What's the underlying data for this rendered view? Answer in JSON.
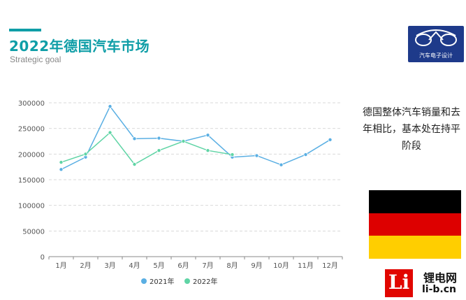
{
  "header": {
    "title": "2022年德国汽车市场",
    "subtitle": "Strategic goal",
    "accent_color": "#0f9ea7"
  },
  "logo": {
    "text": "汽车电子设计"
  },
  "note": {
    "text": "德国整体汽车销量和去年相比，基本处在持平阶段"
  },
  "flag": {
    "colors": [
      "#000000",
      "#dd0000",
      "#ffce00"
    ]
  },
  "brand": {
    "glyph": "Li",
    "name": "锂电网",
    "url": "li-b.cn"
  },
  "chart_data": {
    "type": "line",
    "title": "",
    "xlabel": "",
    "ylabel": "",
    "categories": [
      "1月",
      "2月",
      "3月",
      "4月",
      "5月",
      "6月",
      "7月",
      "8月",
      "9月",
      "10月",
      "11月",
      "12月"
    ],
    "ylim": [
      0,
      300000
    ],
    "yticks": [
      "0",
      "50000",
      "100000",
      "150000",
      "200000",
      "250000",
      "300000"
    ],
    "grid": true,
    "legend": "bottom",
    "series": [
      {
        "name": "2021年",
        "color": "#5aafe3",
        "values": [
          170000,
          194000,
          293000,
          230000,
          231000,
          225000,
          237000,
          194000,
          197000,
          179000,
          199000,
          228000
        ]
      },
      {
        "name": "2022年",
        "color": "#5fd4a5",
        "values": [
          184000,
          200000,
          242000,
          180000,
          207000,
          225000,
          207000,
          199000,
          null,
          null,
          null,
          null
        ]
      }
    ]
  }
}
